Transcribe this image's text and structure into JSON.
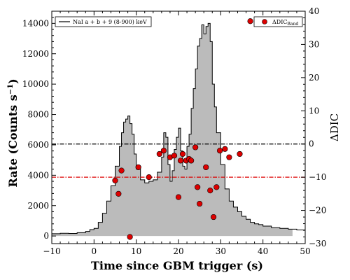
{
  "chart_data": {
    "type": "area",
    "xlabel": "Time since GBM trigger (s)",
    "ylabel_left": "Rate (Counts s",
    "ylabel_left_sup": "−1",
    "ylabel_left_close": ")",
    "ylabel_right": "ΔDIC",
    "xlim": [
      -10,
      50
    ],
    "ylim_left": [
      -500,
      14800
    ],
    "ylim_right": [
      -30,
      40
    ],
    "x_ticks": [
      -10,
      0,
      10,
      20,
      30,
      40,
      50
    ],
    "x_tick_labels": [
      "−10",
      "0",
      "10",
      "20",
      "30",
      "40",
      "50"
    ],
    "y_left_ticks": [
      0,
      2000,
      4000,
      6000,
      8000,
      10000,
      12000,
      14000
    ],
    "y_left_tick_labels": [
      "0",
      "2000",
      "4000",
      "6000",
      "8000",
      "10000",
      "12000",
      "14000"
    ],
    "y_right_ticks": [
      -30,
      -20,
      -10,
      0,
      10,
      20,
      30,
      40
    ],
    "y_right_tick_labels": [
      "−30",
      "−20",
      "−10",
      "0",
      "10",
      "20",
      "30",
      "40"
    ],
    "grid": false,
    "reference_lines": [
      {
        "axis": "right",
        "value": 0,
        "color": "#000000",
        "style": "dash-dot"
      },
      {
        "axis": "right",
        "value": -10,
        "color": "#dd0000",
        "style": "dash-dot"
      }
    ],
    "series": [
      {
        "name": "NaI a + b + 9 (8-900) keV",
        "axis": "left",
        "render": "step-fill",
        "fill_color": "#bbbbbb",
        "line_color": "#000000",
        "x": [
          -10,
          -8,
          -6,
          -4,
          -2,
          -1,
          0,
          1,
          2,
          3,
          4,
          5,
          6,
          6.5,
          7,
          7.5,
          8,
          8.5,
          9,
          9.5,
          10,
          11,
          12,
          13,
          14,
          15,
          16,
          16.5,
          17,
          17.5,
          18,
          18.5,
          19,
          19.5,
          20,
          20.5,
          21,
          21.5,
          22,
          22.5,
          23,
          23.5,
          24,
          24.5,
          25,
          25.5,
          26,
          26.5,
          27,
          27.5,
          28,
          28.5,
          29,
          30,
          31,
          32,
          33,
          34,
          35,
          36,
          37,
          38,
          39,
          40,
          42,
          44,
          46,
          48,
          50
        ],
        "values": [
          150,
          180,
          170,
          220,
          300,
          420,
          500,
          900,
          1500,
          2300,
          3300,
          4600,
          5900,
          6800,
          7500,
          7700,
          7900,
          7400,
          6700,
          5400,
          4400,
          3700,
          3500,
          3600,
          3700,
          4200,
          5200,
          6800,
          6500,
          4700,
          3600,
          4300,
          5700,
          6500,
          7100,
          5600,
          4600,
          4400,
          5900,
          6700,
          8400,
          9700,
          11000,
          12500,
          13000,
          13900,
          13300,
          13800,
          14000,
          12800,
          10000,
          8500,
          6800,
          4700,
          3100,
          2300,
          1900,
          1600,
          1300,
          1100,
          900,
          800,
          750,
          650,
          550,
          500,
          450,
          400,
          400
        ]
      },
      {
        "name": "ΔDIC",
        "name_sub": "Band",
        "axis": "right",
        "render": "scatter",
        "marker_color": "#dd0000",
        "x": [
          5,
          5.8,
          6.5,
          8.5,
          10.5,
          13,
          15.5,
          16.5,
          18,
          19,
          20,
          20.5,
          21,
          21.8,
          22.5,
          23,
          24,
          24.5,
          25,
          26.5,
          27.5,
          28.3,
          29,
          29.8,
          31,
          32,
          34.5,
          37
        ],
        "values": [
          -11,
          -15,
          -8,
          -28,
          -7,
          -10,
          -3,
          -2,
          -4,
          -3.5,
          -16,
          -5,
          -3,
          -5,
          -4.5,
          -5,
          -1,
          -13,
          -18,
          -7,
          -14,
          -22,
          -13,
          -2,
          -1.5,
          -4,
          -3,
          37
        ]
      }
    ]
  }
}
